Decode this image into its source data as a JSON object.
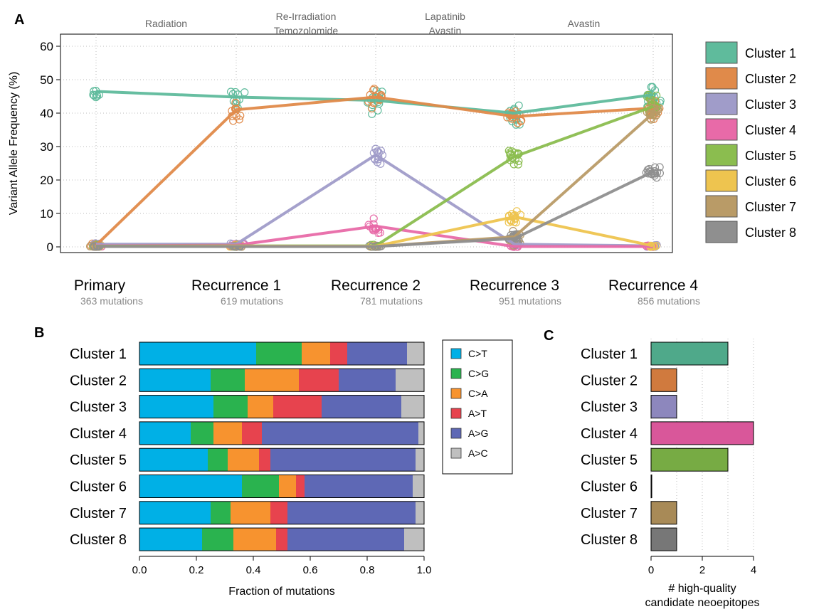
{
  "chart_data": [
    {
      "panel": "A",
      "type": "scatter",
      "ylabel": "Variant Allele Frequency (%)",
      "ylim": [
        0,
        62
      ],
      "yticks": [
        "0",
        "10",
        "20",
        "30",
        "40",
        "50",
        "60"
      ],
      "grid": "dotted",
      "timepoints": [
        {
          "label": "Primary",
          "sub": "363 mutations"
        },
        {
          "label": "Recurrence 1",
          "sub": "619 mutations"
        },
        {
          "label": "Recurrence 2",
          "sub": "781 mutations"
        },
        {
          "label": "Recurrence 3",
          "sub": "951 mutations"
        },
        {
          "label": "Recurrence 4",
          "sub": "856 mutations"
        }
      ],
      "treatments": [
        {
          "lines": [
            "Radiation"
          ]
        },
        {
          "lines": [
            "Re-Irradiation",
            "Temozolomide"
          ]
        },
        {
          "lines": [
            "Lapatinib",
            "Avastin"
          ]
        },
        {
          "lines": [
            "Avastin"
          ]
        }
      ],
      "legend_placement": "right",
      "series": [
        {
          "name": "Cluster 1",
          "color": "#5fbb9c",
          "values": [
            46.5,
            44.8,
            43.8,
            40.0,
            45.5
          ]
        },
        {
          "name": "Cluster 2",
          "color": "#e08a4a",
          "values": [
            0.5,
            41.0,
            44.8,
            39.0,
            41.5
          ]
        },
        {
          "name": "Cluster 3",
          "color": "#a09cc9",
          "values": [
            0.8,
            0.8,
            27.5,
            0.8,
            0.3
          ]
        },
        {
          "name": "Cluster 4",
          "color": "#e86aa8",
          "values": [
            0.3,
            0.5,
            6.2,
            0.1,
            0.1
          ]
        },
        {
          "name": "Cluster 5",
          "color": "#8bbd4f",
          "values": [
            0.2,
            0.3,
            0.3,
            27.0,
            42.0
          ]
        },
        {
          "name": "Cluster 6",
          "color": "#eec44f",
          "values": [
            0.1,
            0.2,
            0.2,
            9.0,
            0.3
          ]
        },
        {
          "name": "Cluster 7",
          "color": "#b99b67",
          "values": [
            0.1,
            0.1,
            0.1,
            3.0,
            40.0
          ]
        },
        {
          "name": "Cluster 8",
          "color": "#8f8f8f",
          "values": [
            0.1,
            0.1,
            0.1,
            2.5,
            22.5
          ]
        }
      ]
    },
    {
      "panel": "B",
      "type": "bar",
      "orientation": "horizontal",
      "stacked": true,
      "xlabel": "Fraction of mutations",
      "xlim": [
        0,
        1
      ],
      "xticks": [
        "0.0",
        "0.2",
        "0.4",
        "0.6",
        "0.8",
        "1.0"
      ],
      "categories": [
        "Cluster 1",
        "Cluster 2",
        "Cluster 3",
        "Cluster 4",
        "Cluster 5",
        "Cluster 6",
        "Cluster 7",
        "Cluster 8"
      ],
      "legend_placement": "right",
      "series": [
        {
          "name": "C>T",
          "color": "#00b0e6",
          "values": [
            0.41,
            0.25,
            0.26,
            0.18,
            0.24,
            0.36,
            0.25,
            0.22
          ]
        },
        {
          "name": "C>G",
          "color": "#2ab34f",
          "values": [
            0.16,
            0.12,
            0.12,
            0.08,
            0.07,
            0.13,
            0.07,
            0.11
          ]
        },
        {
          "name": "C>A",
          "color": "#f7932f",
          "values": [
            0.1,
            0.19,
            0.09,
            0.1,
            0.11,
            0.06,
            0.14,
            0.15
          ]
        },
        {
          "name": "A>T",
          "color": "#e7434e",
          "values": [
            0.06,
            0.14,
            0.17,
            0.07,
            0.04,
            0.03,
            0.06,
            0.04
          ]
        },
        {
          "name": "A>G",
          "color": "#5e68b5",
          "values": [
            0.21,
            0.2,
            0.28,
            0.55,
            0.51,
            0.38,
            0.45,
            0.41
          ]
        },
        {
          "name": "A>C",
          "color": "#bfbfbf",
          "values": [
            0.06,
            0.1,
            0.08,
            0.02,
            0.03,
            0.04,
            0.03,
            0.07
          ]
        }
      ]
    },
    {
      "panel": "C",
      "type": "bar",
      "orientation": "horizontal",
      "xlabel": [
        "# high-quality",
        "candidate neoepitopes"
      ],
      "xlim": [
        0,
        4
      ],
      "xticks": [
        "0",
        "2",
        "4"
      ],
      "categories": [
        "Cluster 1",
        "Cluster 2",
        "Cluster 3",
        "Cluster 4",
        "Cluster 5",
        "Cluster 6",
        "Cluster 7",
        "Cluster 8"
      ],
      "values": [
        3,
        1,
        1,
        4,
        3,
        0,
        1,
        1
      ],
      "colors": [
        "#4fa98a",
        "#d07a3e",
        "#8d87bd",
        "#d9579a",
        "#77ab44",
        "#e0b53e",
        "#a88a57",
        "#777777"
      ]
    }
  ]
}
